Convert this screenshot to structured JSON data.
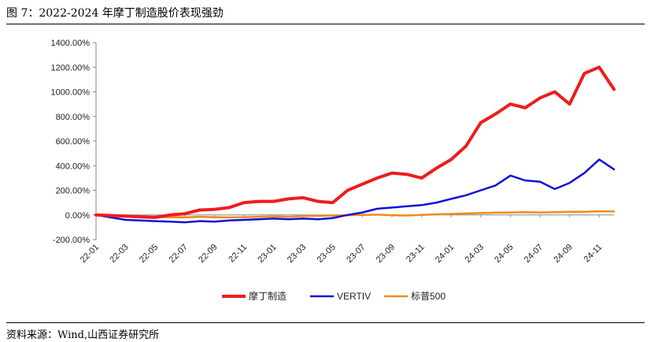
{
  "figure": {
    "title": "图 7：2022-2024 年摩丁制造股价表现强劲",
    "source": "资料来源：Wind,山西证券研究所"
  },
  "chart_data": {
    "type": "line",
    "title": "",
    "xlabel": "",
    "ylabel": "",
    "ylim": [
      -200,
      1400
    ],
    "yticks": [
      "1400.00%",
      "1200.00%",
      "1000.00%",
      "800.00%",
      "600.00%",
      "400.00%",
      "200.00%",
      "0.00%",
      "-200.00%"
    ],
    "yticks_values": [
      1400,
      1200,
      1000,
      800,
      600,
      400,
      200,
      0,
      -200
    ],
    "xticks": [
      "22-01",
      "22-03",
      "22-05",
      "22-07",
      "22-09",
      "22-11",
      "23-01",
      "23-03",
      "23-05",
      "23-07",
      "23-09",
      "23-11",
      "24-01",
      "24-03",
      "24-05",
      "24-07",
      "24-09",
      "24-11"
    ],
    "x": [
      "2022-01",
      "2022-02",
      "2022-03",
      "2022-04",
      "2022-05",
      "2022-06",
      "2022-07",
      "2022-08",
      "2022-09",
      "2022-10",
      "2022-11",
      "2022-12",
      "2023-01",
      "2023-02",
      "2023-03",
      "2023-04",
      "2023-05",
      "2023-06",
      "2023-07",
      "2023-08",
      "2023-09",
      "2023-10",
      "2023-11",
      "2023-12",
      "2024-01",
      "2024-02",
      "2024-03",
      "2024-04",
      "2024-05",
      "2024-06",
      "2024-07",
      "2024-08",
      "2024-09",
      "2024-10",
      "2024-11",
      "2024-12"
    ],
    "grid": false,
    "legend_position": "bottom",
    "series": [
      {
        "name": "摩丁制造",
        "color": "#ee1c1c",
        "values": [
          0,
          -5,
          -10,
          -15,
          -20,
          0,
          10,
          40,
          45,
          60,
          100,
          110,
          110,
          130,
          140,
          110,
          100,
          200,
          250,
          300,
          340,
          330,
          300,
          380,
          450,
          560,
          750,
          820,
          900,
          870,
          950,
          1000,
          900,
          1150,
          1200,
          1020
        ]
      },
      {
        "name": "VERTIV",
        "color": "#1010d8",
        "values": [
          0,
          -20,
          -40,
          -45,
          -50,
          -55,
          -60,
          -50,
          -55,
          -45,
          -40,
          -35,
          -30,
          -35,
          -30,
          -35,
          -25,
          0,
          20,
          50,
          60,
          70,
          80,
          100,
          130,
          160,
          200,
          240,
          320,
          280,
          270,
          210,
          260,
          340,
          450,
          370
        ]
      },
      {
        "name": "标普500",
        "color": "#f28a1c",
        "values": [
          0,
          -5,
          -8,
          -10,
          -15,
          -18,
          -20,
          -15,
          -18,
          -20,
          -18,
          -15,
          -12,
          -15,
          -10,
          -8,
          -5,
          -2,
          0,
          2,
          -2,
          -5,
          0,
          5,
          8,
          12,
          15,
          18,
          20,
          22,
          20,
          22,
          25,
          25,
          30,
          28
        ]
      }
    ]
  }
}
